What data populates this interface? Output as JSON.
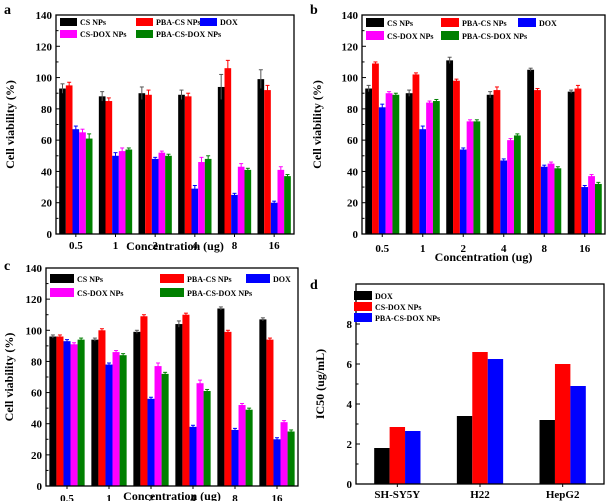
{
  "chart_data": [
    {
      "type": "bar",
      "panel": "a",
      "xlabel": "Concentration (ug)",
      "ylabel": "Cell viability (%)",
      "ylim": [
        0,
        140
      ],
      "yticks": [
        "0",
        "20",
        "40",
        "60",
        "80",
        "100",
        "120",
        "140"
      ],
      "categories": [
        "0.5",
        "1",
        "2",
        "4",
        "8",
        "16"
      ],
      "legend_position": "top",
      "series": [
        {
          "name": "CS NPs",
          "color": "#000000",
          "values": [
            93,
            88,
            90,
            89,
            94,
            99
          ],
          "errors": [
            3,
            3,
            4,
            3,
            8,
            6
          ]
        },
        {
          "name": "PBA-CS NPs",
          "color": "#ff0000",
          "values": [
            95,
            85,
            89,
            88,
            106,
            92
          ],
          "errors": [
            2,
            2,
            3,
            2,
            5,
            3
          ]
        },
        {
          "name": "DOX",
          "color": "#0000ff",
          "values": [
            67,
            50,
            48,
            29,
            25,
            20
          ],
          "errors": [
            2,
            2,
            1,
            2,
            1,
            1
          ]
        },
        {
          "name": "CS-DOX NPs",
          "color": "#ff00ff",
          "values": [
            65,
            53,
            52,
            46,
            43,
            41
          ],
          "errors": [
            2,
            2,
            1,
            3,
            2,
            2
          ]
        },
        {
          "name": "PBA-CS-DOX NPs",
          "color": "#008000",
          "values": [
            61,
            54,
            50,
            48,
            41,
            37
          ],
          "errors": [
            3,
            1,
            1,
            2,
            1,
            1
          ]
        }
      ]
    },
    {
      "type": "bar",
      "panel": "b",
      "xlabel": "Concentration (ug)",
      "ylabel": "Cell viability (%)",
      "ylim": [
        0,
        140
      ],
      "yticks": [
        "0",
        "20",
        "40",
        "60",
        "80",
        "100",
        "120",
        "140"
      ],
      "categories": [
        "0.5",
        "1",
        "2",
        "4",
        "8",
        "16"
      ],
      "legend_position": "top",
      "series": [
        {
          "name": "CS NPs",
          "color": "#000000",
          "values": [
            93,
            90,
            111,
            89,
            105,
            91
          ],
          "errors": [
            2,
            2,
            2,
            2,
            1,
            1
          ]
        },
        {
          "name": "PBA-CS NPs",
          "color": "#ff0000",
          "values": [
            109,
            102,
            98,
            92,
            92,
            93
          ],
          "errors": [
            1,
            1,
            1,
            2,
            1,
            2
          ]
        },
        {
          "name": "DOX",
          "color": "#0000ff",
          "values": [
            81,
            67,
            54,
            47,
            43,
            30
          ],
          "errors": [
            2,
            2,
            1,
            1,
            1,
            1
          ]
        },
        {
          "name": "CS-DOX NPs",
          "color": "#ff00ff",
          "values": [
            90,
            84,
            72,
            60,
            45,
            37
          ],
          "errors": [
            1,
            1,
            1,
            1,
            1,
            1
          ]
        },
        {
          "name": "PBA-CS-DOX NPs",
          "color": "#008000",
          "values": [
            89,
            85,
            72,
            63,
            42,
            32
          ],
          "errors": [
            1,
            1,
            1,
            1,
            1,
            1
          ]
        }
      ]
    },
    {
      "type": "bar",
      "panel": "c",
      "xlabel": "Concentration (ug)",
      "ylabel": "Cell viability (%)",
      "ylim": [
        0,
        140
      ],
      "yticks": [
        "0",
        "20",
        "40",
        "60",
        "80",
        "100",
        "120",
        "140"
      ],
      "categories": [
        "0.5",
        "1",
        "2",
        "4",
        "8",
        "16"
      ],
      "legend_position": "top",
      "series": [
        {
          "name": "CS NPs",
          "color": "#000000",
          "values": [
            96,
            94,
            99,
            104,
            114,
            107
          ],
          "errors": [
            1,
            1,
            1,
            2,
            1,
            1
          ]
        },
        {
          "name": "PBA-CS NPs",
          "color": "#ff0000",
          "values": [
            96,
            100,
            109,
            110,
            99,
            94
          ],
          "errors": [
            1,
            1,
            1,
            1,
            1,
            1
          ]
        },
        {
          "name": "DOX",
          "color": "#0000ff",
          "values": [
            93,
            78,
            56,
            38,
            36,
            30
          ],
          "errors": [
            1,
            1,
            1,
            1,
            1,
            1
          ]
        },
        {
          "name": "CS-DOX NPs",
          "color": "#ff00ff",
          "values": [
            91,
            86,
            77,
            66,
            52,
            41
          ],
          "errors": [
            1,
            1,
            2,
            2,
            1,
            1
          ]
        },
        {
          "name": "PBA-CS-DOX NPs",
          "color": "#008000",
          "values": [
            94,
            84,
            72,
            61,
            49,
            35
          ],
          "errors": [
            1,
            1,
            1,
            1,
            1,
            1
          ]
        }
      ]
    },
    {
      "type": "bar",
      "panel": "d",
      "xlabel": "",
      "ylabel": "IC50 (ug/mL)",
      "ylim": [
        0,
        10
      ],
      "yticks": [
        "0",
        "2",
        "4",
        "6",
        "8"
      ],
      "categories": [
        "SH-SY5Y",
        "H22",
        "HepG2"
      ],
      "legend_position": "top-left",
      "series": [
        {
          "name": "DOX",
          "color": "#000000",
          "values": [
            1.8,
            3.4,
            3.2
          ]
        },
        {
          "name": "CS-DOX NPs",
          "color": "#ff0000",
          "values": [
            2.85,
            6.6,
            6.0
          ]
        },
        {
          "name": "PBA-CS-DOX NPs",
          "color": "#0000ff",
          "values": [
            2.65,
            6.25,
            4.9
          ]
        }
      ]
    }
  ]
}
